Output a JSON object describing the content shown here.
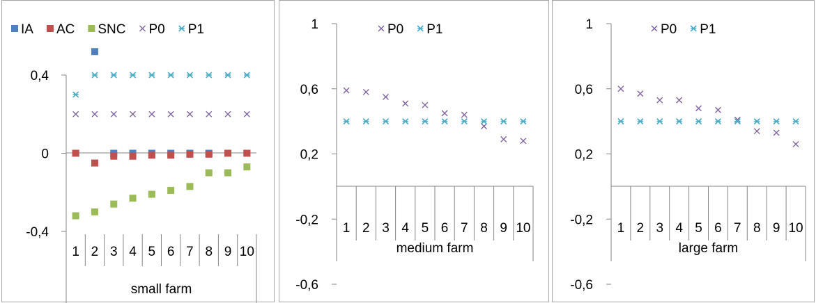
{
  "colors": {
    "IA": "#4f81bd",
    "AC": "#c0504d",
    "SNC": "#9bbb59",
    "P0": "#8064a2",
    "P1": "#4bacc6",
    "axis": "#868686"
  },
  "chart_data": [
    {
      "type": "scatter",
      "title": "",
      "xlabel": "small farm",
      "ylabel": "",
      "categories": [
        "1",
        "2",
        "3",
        "4",
        "5",
        "6",
        "7",
        "8",
        "9",
        "10"
      ],
      "ylim": [
        -0.4,
        0.4
      ],
      "y_ticks": [
        "0,4",
        "0",
        "-0,4"
      ],
      "legend_position": "top",
      "series": [
        {
          "name": "IA",
          "marker": "square",
          "values": [
            0.0,
            0.52,
            0.0,
            0.0,
            0.0,
            0.0,
            0.0,
            0.0,
            0.0,
            0.0
          ]
        },
        {
          "name": "AC",
          "marker": "square",
          "values": [
            0.0,
            -0.05,
            -0.015,
            -0.015,
            -0.01,
            -0.01,
            -0.005,
            -0.005,
            0.0,
            0.0
          ]
        },
        {
          "name": "SNC",
          "marker": "square",
          "values": [
            -0.32,
            -0.3,
            -0.26,
            -0.23,
            -0.21,
            -0.19,
            -0.17,
            -0.1,
            -0.1,
            -0.07
          ]
        },
        {
          "name": "P0",
          "marker": "x",
          "values": [
            0.2,
            0.2,
            0.2,
            0.2,
            0.2,
            0.2,
            0.2,
            0.2,
            0.2,
            0.2
          ]
        },
        {
          "name": "P1",
          "marker": "star",
          "values": [
            0.3,
            0.4,
            0.4,
            0.4,
            0.4,
            0.4,
            0.4,
            0.4,
            0.4,
            0.4
          ]
        }
      ]
    },
    {
      "type": "scatter",
      "title": "",
      "xlabel": "medium farm",
      "ylabel": "",
      "categories": [
        "1",
        "2",
        "3",
        "4",
        "5",
        "6",
        "7",
        "8",
        "9",
        "10"
      ],
      "ylim": [
        -0.6,
        1.0
      ],
      "y_ticks": [
        "1",
        "0,6",
        "0,2",
        "-0,2",
        "-0,6"
      ],
      "legend_position": "top",
      "series": [
        {
          "name": "P0",
          "marker": "x",
          "values": [
            0.59,
            0.58,
            0.55,
            0.51,
            0.5,
            0.45,
            0.44,
            0.37,
            0.29,
            0.28
          ]
        },
        {
          "name": "P1",
          "marker": "star",
          "values": [
            0.4,
            0.4,
            0.4,
            0.4,
            0.4,
            0.4,
            0.4,
            0.4,
            0.4,
            0.4
          ]
        }
      ]
    },
    {
      "type": "scatter",
      "title": "",
      "xlabel": "large farm",
      "ylabel": "",
      "categories": [
        "1",
        "2",
        "3",
        "4",
        "5",
        "6",
        "7",
        "8",
        "9",
        "10"
      ],
      "ylim": [
        -0.6,
        1.0
      ],
      "y_ticks": [
        "1",
        "0,6",
        "0,2",
        "-0,2",
        "-0,6"
      ],
      "legend_position": "top",
      "series": [
        {
          "name": "P0",
          "marker": "x",
          "values": [
            0.6,
            0.57,
            0.53,
            0.53,
            0.48,
            0.47,
            0.41,
            0.34,
            0.33,
            0.26
          ]
        },
        {
          "name": "P1",
          "marker": "star",
          "values": [
            0.4,
            0.4,
            0.4,
            0.4,
            0.4,
            0.4,
            0.4,
            0.4,
            0.4,
            0.4
          ]
        }
      ]
    }
  ]
}
